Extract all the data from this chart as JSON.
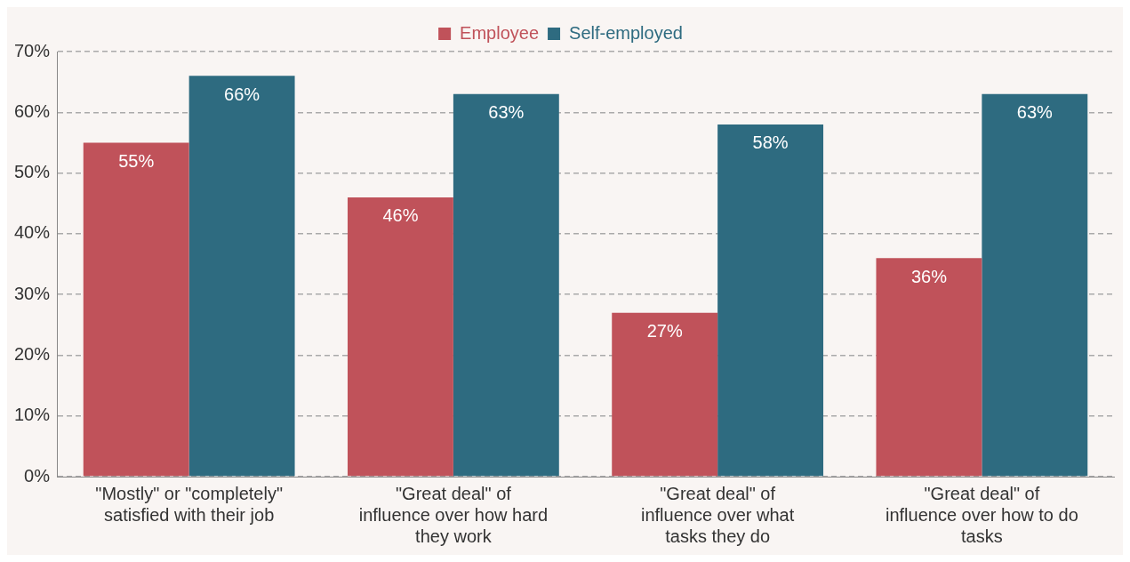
{
  "chart_data": {
    "type": "bar",
    "categories": [
      "\"Mostly\" or \"completely\" satisfied with their job",
      "\"Great deal\" of influence over how hard they work",
      "\"Great deal\" of influence over what tasks they do",
      "\"Great deal\" of influence over how to do tasks"
    ],
    "series": [
      {
        "name": "Employee",
        "color": "#c0525a",
        "values": [
          55,
          46,
          27,
          36
        ],
        "value_labels": [
          "55%",
          "46%",
          "27%",
          "36%"
        ]
      },
      {
        "name": "Self-employed",
        "color": "#2e6b80",
        "values": [
          66,
          63,
          58,
          63
        ],
        "value_labels": [
          "66%",
          "63%",
          "58%",
          "63%"
        ]
      }
    ],
    "ylim": [
      0,
      70
    ],
    "yticks": [
      {
        "value": 0,
        "label": "0%"
      },
      {
        "value": 10,
        "label": "10%"
      },
      {
        "value": 20,
        "label": "20%"
      },
      {
        "value": 30,
        "label": "30%"
      },
      {
        "value": 40,
        "label": "40%"
      },
      {
        "value": 50,
        "label": "50%"
      },
      {
        "value": 60,
        "label": "60%"
      },
      {
        "value": 70,
        "label": "70%"
      }
    ],
    "grid": "y",
    "legend": "top"
  }
}
